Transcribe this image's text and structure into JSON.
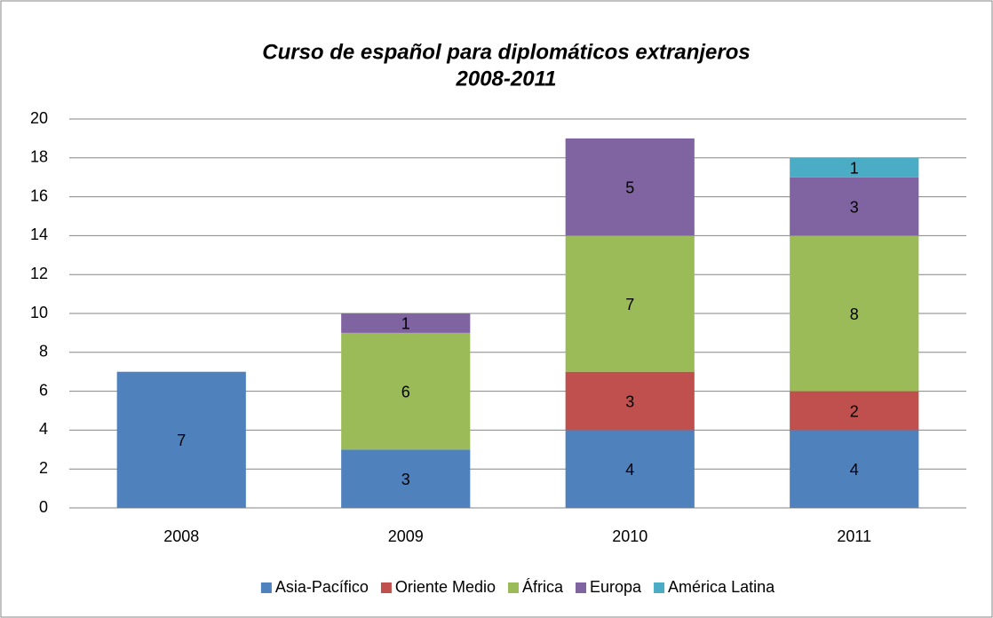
{
  "chart_data": {
    "type": "stacked_bar",
    "title": [
      "Curso de español para diplomáticos extranjeros",
      "2008-2011"
    ],
    "categories": [
      "2008",
      "2009",
      "2010",
      "2011"
    ],
    "series": [
      {
        "name": "Asia-Pacífico",
        "color": "#4f81bd",
        "values": [
          7,
          3,
          4,
          4
        ]
      },
      {
        "name": "Oriente Medio",
        "color": "#c0504d",
        "values": [
          null,
          null,
          3,
          2
        ]
      },
      {
        "name": "África",
        "color": "#9bbb59",
        "values": [
          null,
          6,
          7,
          8
        ]
      },
      {
        "name": "Europa",
        "color": "#8064a2",
        "values": [
          null,
          1,
          5,
          3
        ]
      },
      {
        "name": "América Latina",
        "color": "#4bacc6",
        "values": [
          null,
          null,
          null,
          1
        ]
      }
    ],
    "ylim": [
      0,
      20
    ],
    "yticks": [
      0,
      2,
      4,
      6,
      8,
      10,
      12,
      14,
      16,
      18,
      20
    ],
    "grid": true,
    "legend": "bottom"
  }
}
